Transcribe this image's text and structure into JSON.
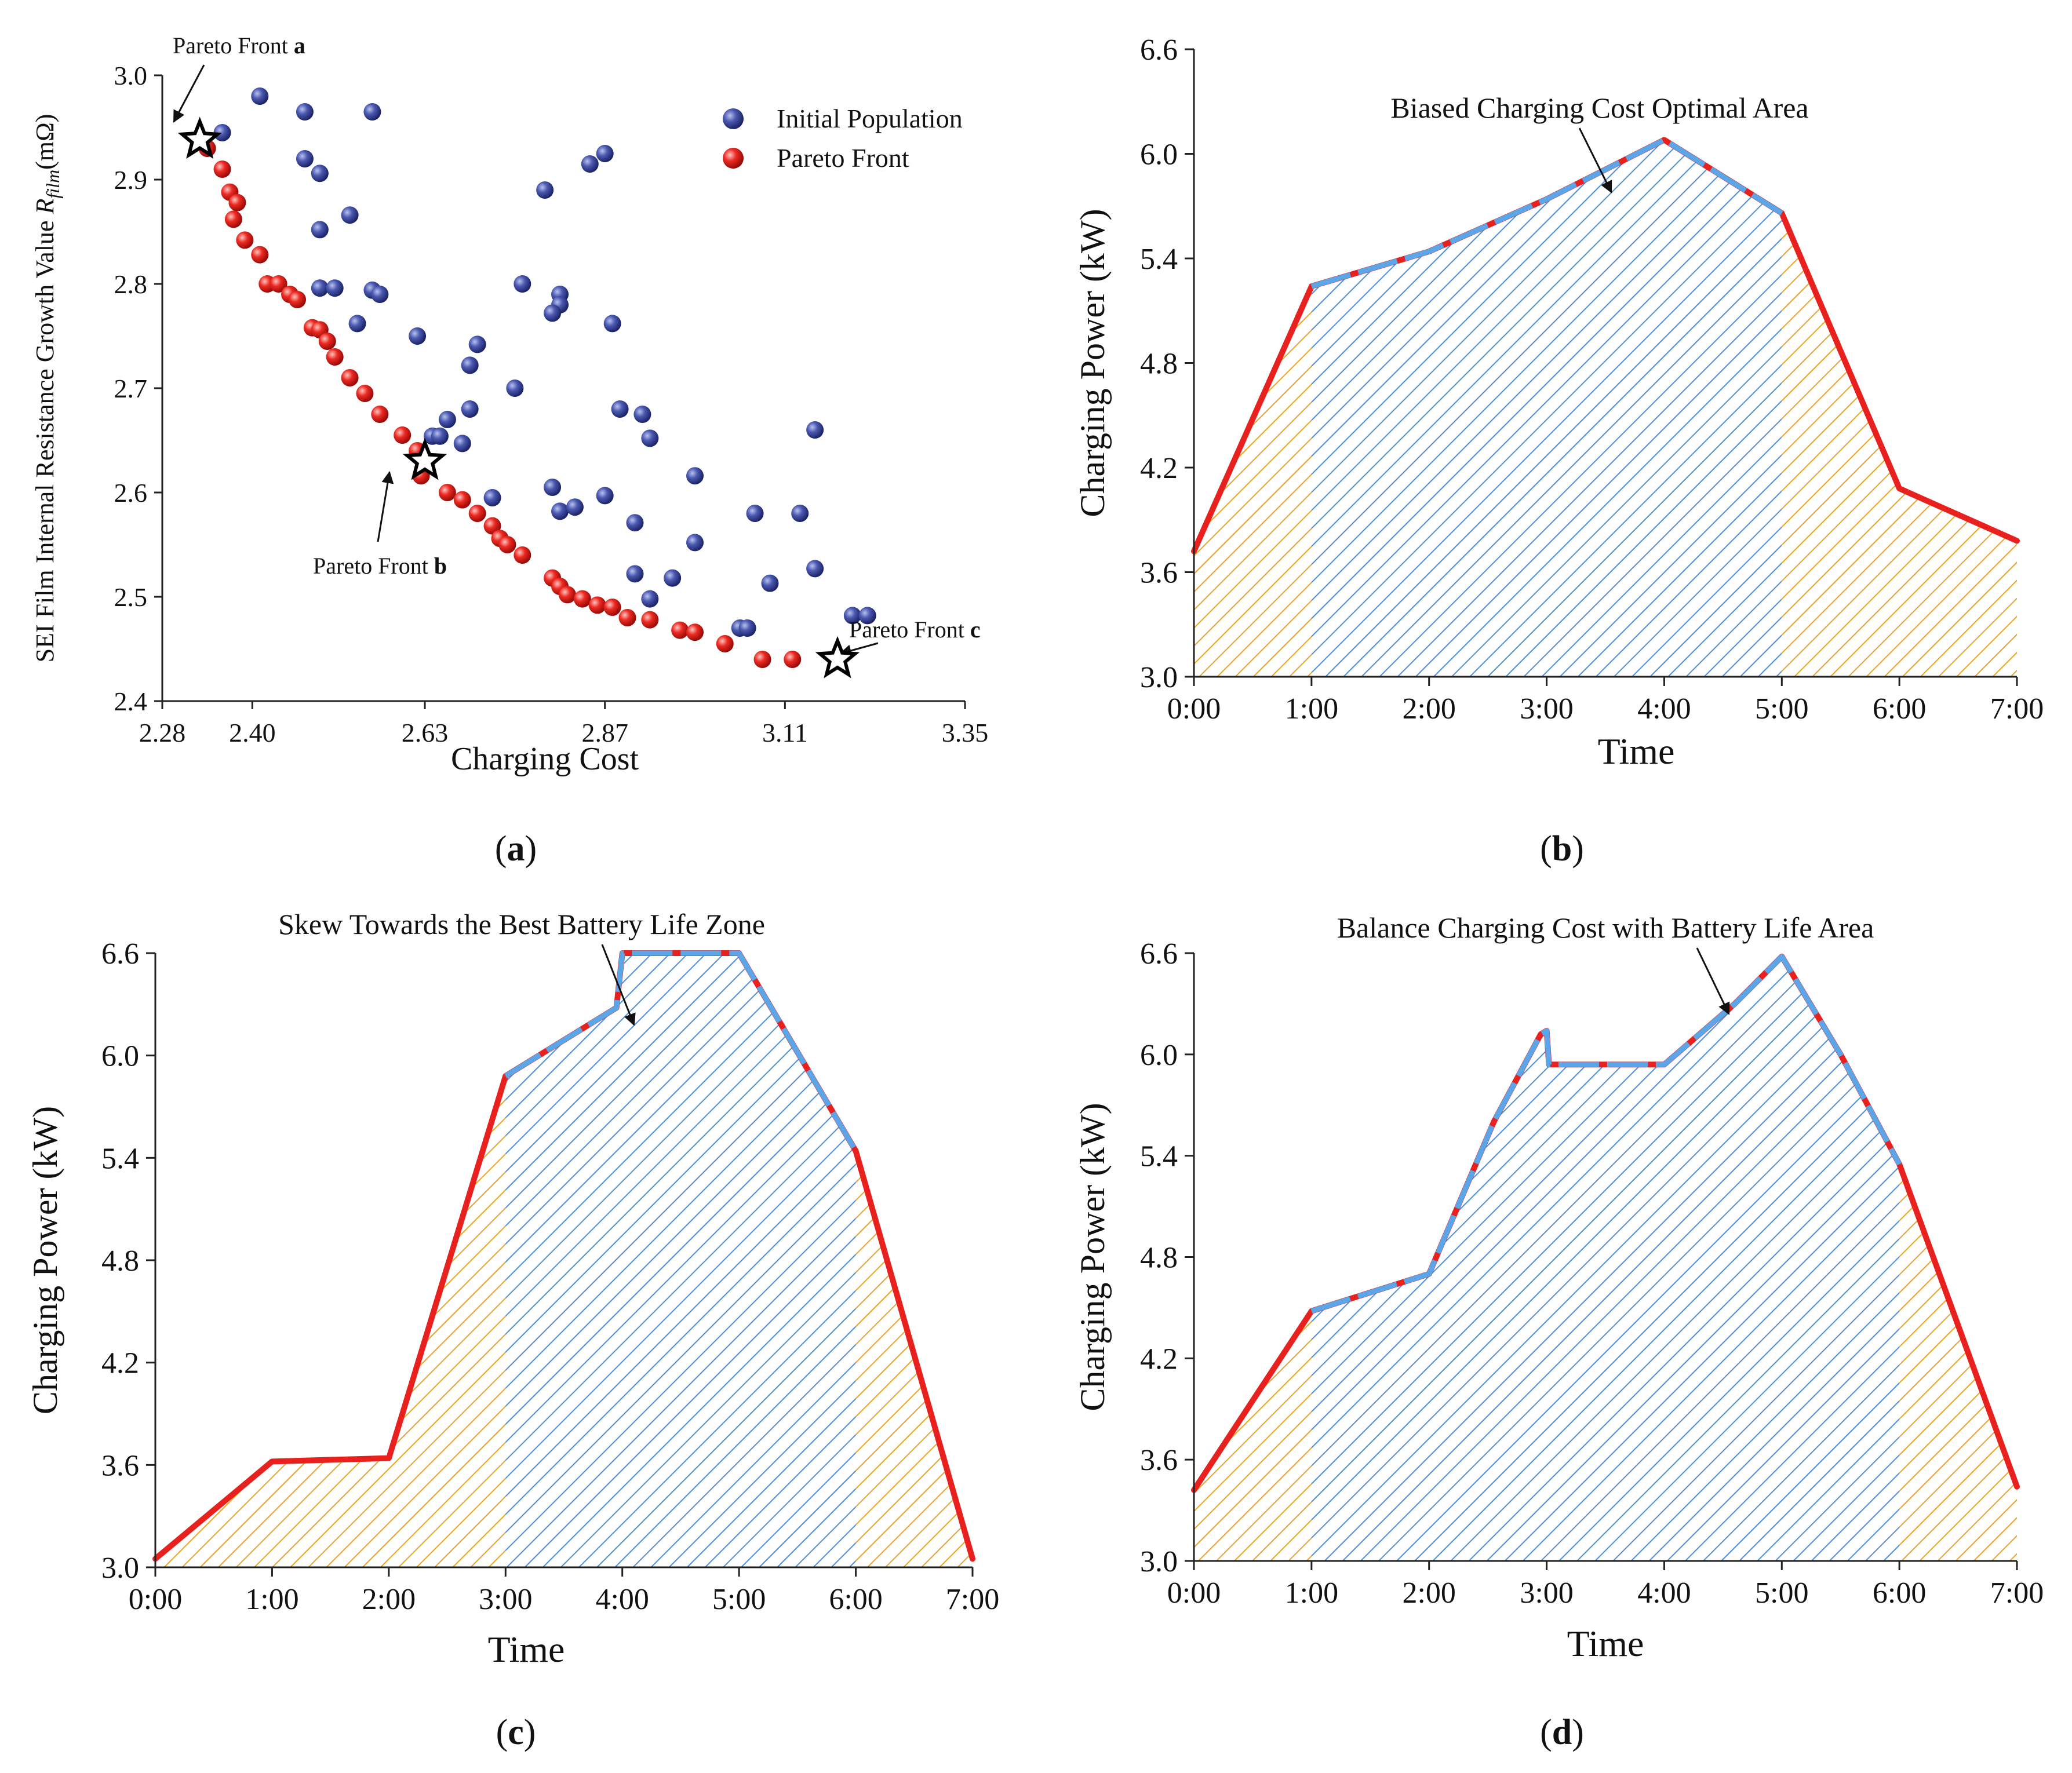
{
  "colors": {
    "initial": "#3d4a9e",
    "pareto": "#e8201e",
    "red_line": "#e8201e",
    "blue_line": "#5aa6e8",
    "orange_hatch": "#e9a428",
    "blue_hatch": "#4f8fd9"
  },
  "chart_data": [
    {
      "type": "scatter",
      "panel_label_open": "(",
      "panel_label_letter": "a",
      "panel_label_close": ")",
      "xlabel": "Charging Cost",
      "ylabel_prefix": "SEI Film Internal Resistance Growth Value ",
      "ylabel_symbol": "R",
      "ylabel_sub": "film",
      "ylabel_suffix": "(mΩ)",
      "xlim": [
        2.28,
        3.35
      ],
      "ylim": [
        2.4,
        3.0
      ],
      "xticks": [
        "2.28",
        "2.40",
        "2.63",
        "2.87",
        "3.11",
        "3.35"
      ],
      "xtick_values": [
        2.28,
        2.4,
        2.63,
        2.87,
        3.11,
        3.35
      ],
      "yticks": [
        "2.4",
        "2.5",
        "2.6",
        "2.7",
        "2.8",
        "2.9",
        "3.0"
      ],
      "ytick_values": [
        2.4,
        2.5,
        2.6,
        2.7,
        2.8,
        2.9,
        3.0
      ],
      "legend": [
        "Initial Population",
        "Pareto Front"
      ],
      "series": [
        {
          "name": "Initial Population",
          "points": [
            [
              2.41,
              2.98
            ],
            [
              2.47,
              2.965
            ],
            [
              2.56,
              2.965
            ],
            [
              2.36,
              2.945
            ],
            [
              2.47,
              2.92
            ],
            [
              2.49,
              2.906
            ],
            [
              2.53,
              2.866
            ],
            [
              2.49,
              2.852
            ],
            [
              2.49,
              2.796
            ],
            [
              2.51,
              2.796
            ],
            [
              2.56,
              2.794
            ],
            [
              2.57,
              2.79
            ],
            [
              2.54,
              2.762
            ],
            [
              2.62,
              2.75
            ],
            [
              2.79,
              2.89
            ],
            [
              2.85,
              2.915
            ],
            [
              2.87,
              2.925
            ],
            [
              2.76,
              2.8
            ],
            [
              2.81,
              2.79
            ],
            [
              2.81,
              2.78
            ],
            [
              2.8,
              2.772
            ],
            [
              2.88,
              2.762
            ],
            [
              2.7,
              2.742
            ],
            [
              2.69,
              2.722
            ],
            [
              2.75,
              2.7
            ],
            [
              2.69,
              2.68
            ],
            [
              2.66,
              2.67
            ],
            [
              2.64,
              2.654
            ],
            [
              2.65,
              2.654
            ],
            [
              2.68,
              2.647
            ],
            [
              2.89,
              2.68
            ],
            [
              2.92,
              2.675
            ],
            [
              2.93,
              2.652
            ],
            [
              3.15,
              2.66
            ],
            [
              2.72,
              2.595
            ],
            [
              2.8,
              2.605
            ],
            [
              2.81,
              2.582
            ],
            [
              2.83,
              2.586
            ],
            [
              2.87,
              2.597
            ],
            [
              2.99,
              2.616
            ],
            [
              2.91,
              2.571
            ],
            [
              3.07,
              2.58
            ],
            [
              3.13,
              2.58
            ],
            [
              2.99,
              2.552
            ],
            [
              2.91,
              2.522
            ],
            [
              2.96,
              2.518
            ],
            [
              3.15,
              2.527
            ],
            [
              3.09,
              2.513
            ],
            [
              2.93,
              2.498
            ],
            [
              3.05,
              2.47
            ],
            [
              3.06,
              2.47
            ],
            [
              3.2,
              2.482
            ],
            [
              3.22,
              2.482
            ]
          ]
        },
        {
          "name": "Pareto Front",
          "points": [
            [
              2.34,
              2.93
            ],
            [
              2.36,
              2.91
            ],
            [
              2.37,
              2.888
            ],
            [
              2.38,
              2.878
            ],
            [
              2.375,
              2.862
            ],
            [
              2.39,
              2.842
            ],
            [
              2.41,
              2.828
            ],
            [
              2.42,
              2.8
            ],
            [
              2.435,
              2.8
            ],
            [
              2.45,
              2.79
            ],
            [
              2.46,
              2.785
            ],
            [
              2.48,
              2.758
            ],
            [
              2.49,
              2.756
            ],
            [
              2.5,
              2.745
            ],
            [
              2.51,
              2.73
            ],
            [
              2.53,
              2.71
            ],
            [
              2.55,
              2.695
            ],
            [
              2.57,
              2.675
            ],
            [
              2.6,
              2.655
            ],
            [
              2.62,
              2.64
            ],
            [
              2.625,
              2.616
            ],
            [
              2.66,
              2.6
            ],
            [
              2.68,
              2.593
            ],
            [
              2.7,
              2.58
            ],
            [
              2.72,
              2.568
            ],
            [
              2.73,
              2.556
            ],
            [
              2.74,
              2.55
            ],
            [
              2.76,
              2.54
            ],
            [
              2.8,
              2.518
            ],
            [
              2.81,
              2.51
            ],
            [
              2.82,
              2.502
            ],
            [
              2.84,
              2.498
            ],
            [
              2.86,
              2.492
            ],
            [
              2.88,
              2.49
            ],
            [
              2.9,
              2.48
            ],
            [
              2.93,
              2.478
            ],
            [
              2.97,
              2.468
            ],
            [
              2.99,
              2.466
            ],
            [
              3.03,
              2.455
            ],
            [
              3.08,
              2.44
            ],
            [
              3.12,
              2.44
            ]
          ]
        }
      ],
      "annotations": [
        {
          "prefix": "Pareto Front ",
          "bold": "a",
          "point": [
            2.33,
            2.938
          ]
        },
        {
          "prefix": "Pareto Front ",
          "bold": "b",
          "point": [
            2.63,
            2.63
          ]
        },
        {
          "prefix": "Pareto Front ",
          "bold": "c",
          "point": [
            3.18,
            2.44
          ]
        }
      ]
    },
    {
      "type": "area",
      "panel_label_open": "(",
      "panel_label_letter": "b",
      "panel_label_close": ")",
      "title": "Biased Charging Cost Optimal Area",
      "xlabel": "Time",
      "ylabel": "Charging Power (kW)",
      "categories": [
        "0:00",
        "1:00",
        "2:00",
        "3:00",
        "4:00",
        "5:00",
        "6:00",
        "7:00"
      ],
      "xlim": [
        0,
        7
      ],
      "ylim": [
        3.0,
        6.6
      ],
      "yticks": [
        "3.0",
        "3.6",
        "4.2",
        "4.8",
        "5.4",
        "6.0",
        "6.6"
      ],
      "ytick_values": [
        3.0,
        3.6,
        4.2,
        4.8,
        5.4,
        6.0,
        6.6
      ],
      "series": [
        {
          "name": "Charging Power",
          "x": [
            0,
            1,
            2,
            3,
            4,
            5,
            6,
            7
          ],
          "values": [
            3.72,
            5.24,
            5.44,
            5.74,
            6.08,
            5.66,
            4.08,
            3.78
          ]
        }
      ],
      "blue_region": [
        1,
        5
      ],
      "arrow_target": [
        3.55,
        5.78
      ]
    },
    {
      "type": "area",
      "panel_label_open": "(",
      "panel_label_letter": "c",
      "panel_label_close": ")",
      "title": "Skew Towards the Best Battery Life Zone",
      "xlabel": "Time",
      "ylabel": "Charging Power (kW)",
      "categories": [
        "0:00",
        "1:00",
        "2:00",
        "3:00",
        "4:00",
        "5:00",
        "6:00",
        "7:00"
      ],
      "xlim": [
        0,
        7
      ],
      "ylim": [
        3.0,
        6.6
      ],
      "yticks": [
        "3.0",
        "3.6",
        "4.2",
        "4.8",
        "5.4",
        "6.0",
        "6.6"
      ],
      "ytick_values": [
        3.0,
        3.6,
        4.2,
        4.8,
        5.4,
        6.0,
        6.6
      ],
      "series": [
        {
          "name": "Charging Power",
          "x": [
            0,
            1,
            2,
            3,
            3.95,
            4.0,
            5.0,
            6.0,
            7.0
          ],
          "values": [
            3.05,
            3.62,
            3.64,
            5.88,
            6.28,
            6.6,
            6.6,
            5.44,
            3.05
          ]
        }
      ],
      "blue_region": [
        3,
        6
      ],
      "arrow_target": [
        4.1,
        6.18
      ]
    },
    {
      "type": "area",
      "panel_label_open": "(",
      "panel_label_letter": "d",
      "panel_label_close": ")",
      "title": "Balance Charging Cost with Battery Life Area",
      "xlabel": "Time",
      "ylabel": "Charging Power (kW)",
      "categories": [
        "0:00",
        "1:00",
        "2:00",
        "3:00",
        "4:00",
        "5:00",
        "6:00",
        "7:00"
      ],
      "xlim": [
        0,
        7
      ],
      "ylim": [
        3.0,
        6.6
      ],
      "yticks": [
        "3.0",
        "3.6",
        "4.2",
        "4.8",
        "5.4",
        "6.0",
        "6.6"
      ],
      "ytick_values": [
        3.0,
        3.6,
        4.2,
        4.8,
        5.4,
        6.0,
        6.6
      ],
      "series": [
        {
          "name": "Charging Power",
          "x": [
            0,
            1,
            2,
            2.55,
            2.95,
            3.0,
            3.02,
            4.0,
            4.6,
            5.0,
            5.5,
            6.0,
            7.0
          ],
          "values": [
            3.42,
            4.48,
            4.7,
            5.6,
            6.12,
            6.14,
            5.94,
            5.94,
            6.3,
            6.58,
            6.0,
            5.35,
            3.44
          ]
        }
      ],
      "blue_region": [
        1,
        6
      ],
      "arrow_target": [
        4.55,
        6.24
      ]
    }
  ]
}
